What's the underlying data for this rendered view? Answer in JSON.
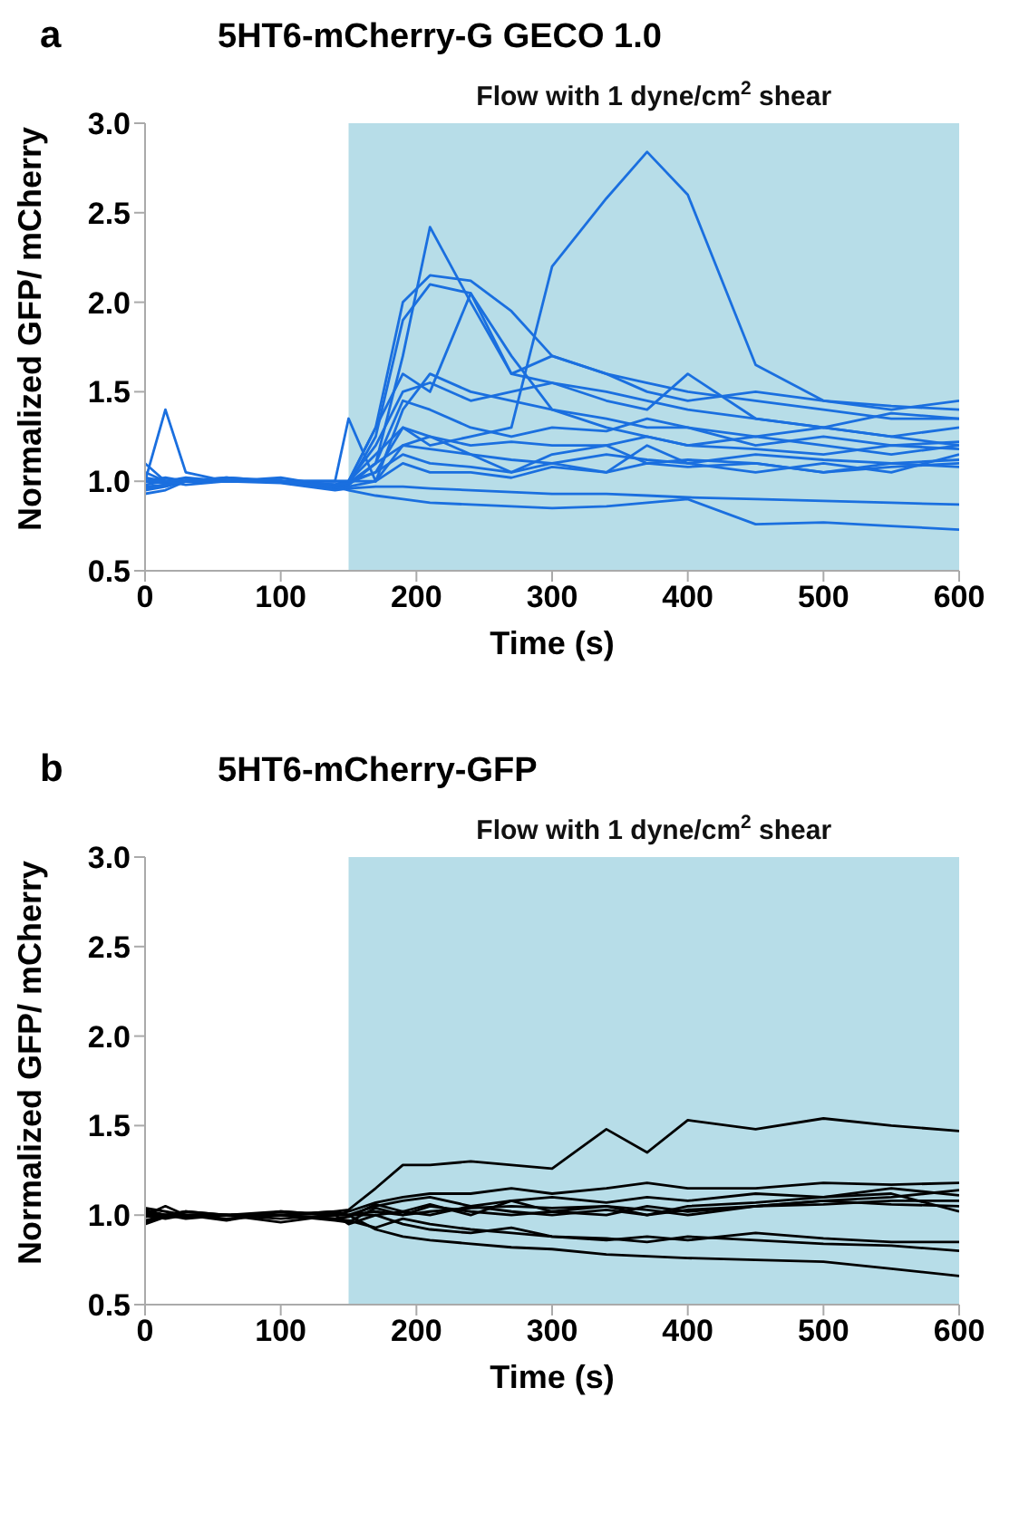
{
  "chart_data": [
    {
      "type": "line",
      "title": "5HT6-mCherry-G GECO 1.0",
      "annotations": [
        "a"
      ],
      "xlabel": "Time (s)",
      "ylabel": "Normalized GFP/ mCherry",
      "x": [
        0,
        15,
        30,
        60,
        100,
        140,
        150,
        170,
        190,
        210,
        240,
        270,
        300,
        340,
        370,
        400,
        450,
        500,
        550,
        600
      ],
      "xlim": [
        0,
        600
      ],
      "xticks": [
        0,
        100,
        200,
        300,
        400,
        500,
        600
      ],
      "ylim": [
        0.5,
        3.0
      ],
      "yticks": [
        {
          "value": 0.5,
          "label": "0.5"
        },
        {
          "value": 1.0,
          "label": "1.0"
        },
        {
          "value": 1.5,
          "label": "1.5"
        },
        {
          "value": 2.0,
          "label": "2.0"
        },
        {
          "value": 2.5,
          "label": "2.5"
        },
        {
          "value": 3.0,
          "label": "3.0"
        }
      ],
      "grid": false,
      "legend": false,
      "marker": "none",
      "line_style": "solid",
      "bands": [
        {
          "axis": "x",
          "from": 150,
          "to": 600,
          "label": "Flow with 1 dyne/cm$^{2}$ shear",
          "color": "#b7dde8"
        }
      ],
      "series": [
        {
          "color": "#1a6fdf",
          "values": [
            1.0,
            1.0,
            1.02,
            1.0,
            1.0,
            0.98,
            1.0,
            1.05,
            1.3,
            1.2,
            1.25,
            1.3,
            2.2,
            2.58,
            2.84,
            2.6,
            1.65,
            1.45,
            1.42,
            1.4
          ]
        },
        {
          "color": "#1a6fdf",
          "values": [
            0.95,
            0.97,
            1.0,
            1.0,
            1.0,
            0.97,
            0.98,
            1.1,
            1.7,
            2.42,
            2.0,
            1.6,
            1.55,
            1.5,
            1.45,
            1.4,
            1.35,
            1.3,
            1.25,
            1.2
          ]
        },
        {
          "color": "#1a6fdf",
          "values": [
            1.0,
            1.0,
            1.0,
            1.02,
            1.0,
            0.98,
            1.0,
            1.3,
            2.0,
            2.15,
            2.12,
            1.95,
            1.7,
            1.6,
            1.55,
            1.5,
            1.45,
            1.4,
            1.35,
            1.35
          ]
        },
        {
          "color": "#1a6fdf",
          "values": [
            1.0,
            1.02,
            1.0,
            1.0,
            1.02,
            0.97,
            0.98,
            1.25,
            1.9,
            2.1,
            2.05,
            1.7,
            1.4,
            1.3,
            1.25,
            1.2,
            1.25,
            1.2,
            1.15,
            1.2
          ]
        },
        {
          "color": "#1a6fdf",
          "values": [
            1.05,
            1.0,
            1.0,
            1.0,
            1.0,
            1.0,
            1.0,
            1.3,
            1.6,
            1.5,
            2.05,
            1.6,
            1.7,
            1.6,
            1.5,
            1.45,
            1.5,
            1.45,
            1.4,
            1.45
          ]
        },
        {
          "color": "#1a6fdf",
          "values": [
            1.0,
            1.4,
            1.05,
            1.0,
            1.0,
            0.98,
            1.0,
            1.2,
            1.5,
            1.55,
            1.45,
            1.5,
            1.55,
            1.45,
            1.4,
            1.6,
            1.35,
            1.3,
            1.38,
            1.35
          ]
        },
        {
          "color": "#1a6fdf",
          "values": [
            1.0,
            1.0,
            1.0,
            1.0,
            1.0,
            1.0,
            1.35,
            1.0,
            1.4,
            1.6,
            1.5,
            1.45,
            1.4,
            1.35,
            1.3,
            1.3,
            1.25,
            1.3,
            1.25,
            1.3
          ]
        },
        {
          "color": "#1a6fdf",
          "values": [
            0.98,
            1.0,
            1.0,
            1.0,
            1.0,
            0.98,
            0.99,
            1.1,
            1.45,
            1.4,
            1.3,
            1.25,
            1.3,
            1.28,
            1.35,
            1.3,
            1.2,
            1.25,
            1.2,
            1.22
          ]
        },
        {
          "color": "#1a6fdf",
          "values": [
            1.02,
            1.0,
            1.0,
            1.0,
            1.0,
            1.0,
            1.0,
            1.15,
            1.3,
            1.25,
            1.2,
            1.22,
            1.2,
            1.2,
            1.25,
            1.2,
            1.18,
            1.15,
            1.2,
            1.18
          ]
        },
        {
          "color": "#1a6fdf",
          "values": [
            0.97,
            0.98,
            1.0,
            1.0,
            1.0,
            0.97,
            0.98,
            1.1,
            1.2,
            1.18,
            1.15,
            1.12,
            1.1,
            1.15,
            1.12,
            1.1,
            1.15,
            1.12,
            1.1,
            1.12
          ]
        },
        {
          "color": "#1a6fdf",
          "values": [
            1.0,
            0.99,
            1.0,
            1.0,
            1.0,
            0.96,
            0.97,
            1.0,
            1.2,
            1.25,
            1.15,
            1.05,
            1.15,
            1.2,
            1.1,
            1.12,
            1.1,
            1.05,
            1.08,
            1.1
          ]
        },
        {
          "color": "#1a6fdf",
          "values": [
            0.93,
            0.95,
            1.0,
            1.0,
            1.0,
            0.98,
            0.99,
            1.05,
            1.15,
            1.1,
            1.08,
            1.05,
            1.1,
            1.05,
            1.2,
            1.1,
            1.05,
            1.1,
            1.05,
            1.15
          ]
        },
        {
          "color": "#1a6fdf",
          "values": [
            1.1,
            1.0,
            1.0,
            1.02,
            1.0,
            1.0,
            1.0,
            1.0,
            1.1,
            1.05,
            1.05,
            1.02,
            1.08,
            1.05,
            1.1,
            1.08,
            1.1,
            1.05,
            1.1,
            1.08
          ]
        },
        {
          "color": "#1a6fdf",
          "values": [
            0.96,
            0.98,
            1.0,
            1.0,
            0.99,
            0.95,
            0.96,
            0.97,
            0.97,
            0.96,
            0.95,
            0.94,
            0.93,
            0.93,
            0.92,
            0.91,
            0.9,
            0.89,
            0.88,
            0.87
          ]
        },
        {
          "color": "#1a6fdf",
          "values": [
            1.0,
            1.0,
            0.98,
            1.0,
            1.0,
            0.97,
            0.95,
            0.92,
            0.9,
            0.88,
            0.87,
            0.86,
            0.85,
            0.86,
            0.88,
            0.9,
            0.76,
            0.77,
            0.75,
            0.73
          ]
        }
      ]
    },
    {
      "type": "line",
      "title": "5HT6-mCherry-GFP",
      "annotations": [
        "b"
      ],
      "xlabel": "Time (s)",
      "ylabel": "Normalized GFP/ mCherry",
      "x": [
        0,
        15,
        30,
        60,
        100,
        140,
        150,
        170,
        190,
        210,
        240,
        270,
        300,
        340,
        370,
        400,
        450,
        500,
        550,
        600
      ],
      "xlim": [
        0,
        600
      ],
      "xticks": [
        0,
        100,
        200,
        300,
        400,
        500,
        600
      ],
      "ylim": [
        0.5,
        3.0
      ],
      "yticks": [
        {
          "value": 0.5,
          "label": "0.5"
        },
        {
          "value": 1.0,
          "label": "1.0"
        },
        {
          "value": 1.5,
          "label": "1.5"
        },
        {
          "value": 2.0,
          "label": "2.0"
        },
        {
          "value": 2.5,
          "label": "2.5"
        },
        {
          "value": 3.0,
          "label": "3.0"
        }
      ],
      "grid": false,
      "legend": false,
      "marker": "none",
      "line_style": "solid",
      "bands": [
        {
          "axis": "x",
          "from": 150,
          "to": 600,
          "label": "Flow with 1 dyne/cm$^{2}$ shear",
          "color": "#b7dde8"
        }
      ],
      "series": [
        {
          "color": "#000000",
          "values": [
            1.0,
            1.05,
            1.0,
            1.0,
            1.0,
            1.02,
            1.03,
            1.15,
            1.28,
            1.28,
            1.3,
            1.28,
            1.26,
            1.48,
            1.35,
            1.53,
            1.48,
            1.54,
            1.5,
            1.47
          ]
        },
        {
          "color": "#000000",
          "values": [
            1.03,
            1.0,
            1.0,
            0.97,
            1.02,
            1.0,
            1.0,
            0.92,
            0.88,
            0.86,
            0.84,
            0.82,
            0.81,
            0.78,
            0.77,
            0.76,
            0.75,
            0.74,
            0.7,
            0.66
          ]
        },
        {
          "color": "#000000",
          "values": [
            0.97,
            1.0,
            1.02,
            1.0,
            0.98,
            1.0,
            0.95,
            1.0,
            0.95,
            0.92,
            0.9,
            0.93,
            0.88,
            0.86,
            0.88,
            0.86,
            0.9,
            0.87,
            0.85,
            0.85
          ]
        },
        {
          "color": "#000000",
          "values": [
            1.0,
            0.98,
            1.0,
            1.0,
            1.0,
            0.98,
            0.97,
            0.93,
            0.98,
            0.95,
            0.92,
            0.9,
            0.88,
            0.87,
            0.85,
            0.88,
            0.86,
            0.84,
            0.83,
            0.8
          ]
        },
        {
          "color": "#000000",
          "values": [
            1.02,
            1.0,
            1.02,
            1.0,
            1.02,
            1.0,
            1.02,
            1.07,
            1.1,
            1.12,
            1.12,
            1.15,
            1.12,
            1.15,
            1.18,
            1.15,
            1.15,
            1.18,
            1.17,
            1.18
          ]
        },
        {
          "color": "#000000",
          "values": [
            0.96,
            1.0,
            0.98,
            1.0,
            1.0,
            1.02,
            1.0,
            1.05,
            1.08,
            1.1,
            1.05,
            1.08,
            1.1,
            1.07,
            1.1,
            1.08,
            1.12,
            1.1,
            1.15,
            1.11
          ]
        },
        {
          "color": "#000000",
          "values": [
            1.04,
            1.02,
            1.0,
            0.98,
            1.0,
            0.98,
            0.99,
            1.06,
            1.02,
            1.06,
            1.0,
            1.08,
            1.02,
            1.05,
            1.03,
            1.0,
            1.05,
            1.08,
            1.1,
            1.14
          ]
        },
        {
          "color": "#000000",
          "values": [
            0.99,
            1.0,
            0.99,
            1.0,
            0.96,
            1.0,
            1.0,
            1.02,
            1.0,
            1.05,
            1.02,
            1.0,
            1.02,
            1.0,
            1.05,
            1.02,
            1.05,
            1.08,
            1.06,
            1.05
          ]
        },
        {
          "color": "#000000",
          "values": [
            0.95,
            0.99,
            1.0,
            1.0,
            1.0,
            1.01,
            1.0,
            1.0,
            1.02,
            1.0,
            1.05,
            1.02,
            1.0,
            1.03,
            1.0,
            1.05,
            1.07,
            1.1,
            1.12,
            1.02
          ]
        },
        {
          "color": "#000000",
          "values": [
            1.01,
            1.0,
            1.0,
            1.0,
            1.0,
            0.97,
            0.96,
            1.04,
            1.0,
            1.02,
            1.04,
            1.05,
            1.04,
            1.05,
            1.0,
            1.03,
            1.05,
            1.06,
            1.08,
            1.08
          ]
        }
      ]
    }
  ]
}
